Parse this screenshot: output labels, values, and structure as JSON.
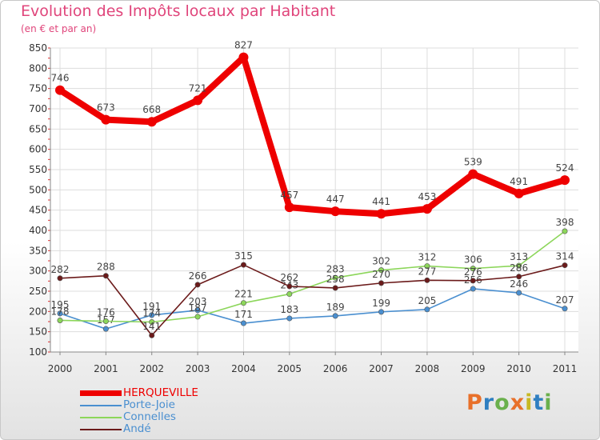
{
  "chart_data": {
    "type": "line",
    "title": "Evolution des Impôts locaux par Habitant",
    "subtitle": "(en € et par an)",
    "categories": [
      "2000",
      "2001",
      "2002",
      "2003",
      "2004",
      "2005",
      "2006",
      "2007",
      "2008",
      "2009",
      "2010",
      "2011"
    ],
    "ylim": [
      100,
      850
    ],
    "yticks": [
      100,
      150,
      200,
      250,
      300,
      350,
      400,
      450,
      500,
      550,
      600,
      650,
      700,
      750,
      800,
      850
    ],
    "grid": true,
    "legend_position": "bottom-left",
    "series": [
      {
        "name": "HERQUEVILLE",
        "color": "#ee0000",
        "emphasis": true,
        "values": [
          746,
          673,
          668,
          721,
          827,
          457,
          447,
          441,
          453,
          539,
          491,
          524
        ]
      },
      {
        "name": "Porte-Joie",
        "color": "#4a8fd0",
        "emphasis": false,
        "values": [
          195,
          157,
          191,
          203,
          171,
          183,
          189,
          199,
          205,
          256,
          246,
          207
        ]
      },
      {
        "name": "Connelles",
        "color": "#8cd65a",
        "emphasis": false,
        "values": [
          178,
          176,
          174,
          187,
          221,
          243,
          283,
          302,
          312,
          306,
          313,
          398
        ]
      },
      {
        "name": "Andé",
        "color": "#6b1a1a",
        "emphasis": false,
        "values": [
          282,
          288,
          141,
          266,
          315,
          262,
          258,
          270,
          277,
          276,
          286,
          314
        ]
      }
    ]
  },
  "logo": {
    "letters": [
      "P",
      "r",
      "o",
      "x",
      "i",
      "t",
      "i"
    ],
    "colors": [
      "#e8702a",
      "#2f7fc1",
      "#6ab04c",
      "#e8702a",
      "#c7b822",
      "#2f7fc1",
      "#6ab04c"
    ]
  }
}
